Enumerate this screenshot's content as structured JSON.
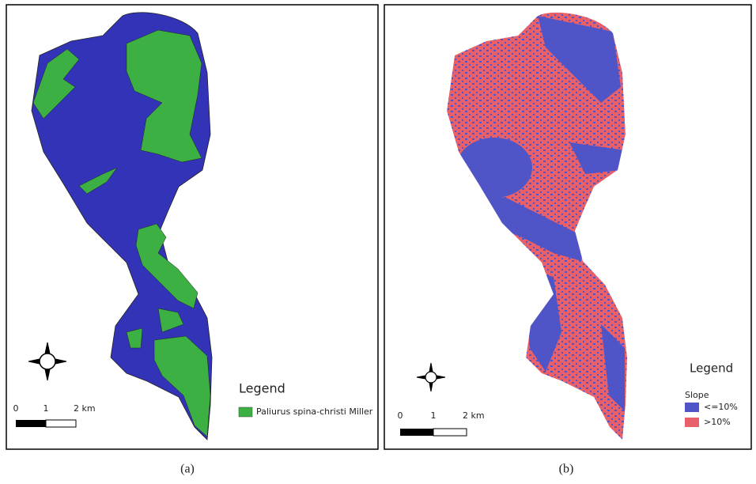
{
  "panels": [
    {
      "caption": "(a)",
      "legend": {
        "title": "Legend",
        "items": [
          {
            "label": "Paliurus spina-christi Miller",
            "color": "#3cb043"
          }
        ],
        "base_color": "#3333b8"
      },
      "scale_bar": {
        "labels": [
          "0",
          "1",
          "2 km"
        ]
      }
    },
    {
      "caption": "(b)",
      "legend": {
        "title": "Legend",
        "subtitle": "Slope",
        "items": [
          {
            "label": "<=10%",
            "color": "#4f55c6"
          },
          {
            "label": ">10%",
            "color": "#e8606a"
          }
        ]
      },
      "scale_bar": {
        "labels": [
          "0",
          "1",
          "2 km"
        ]
      }
    }
  ]
}
